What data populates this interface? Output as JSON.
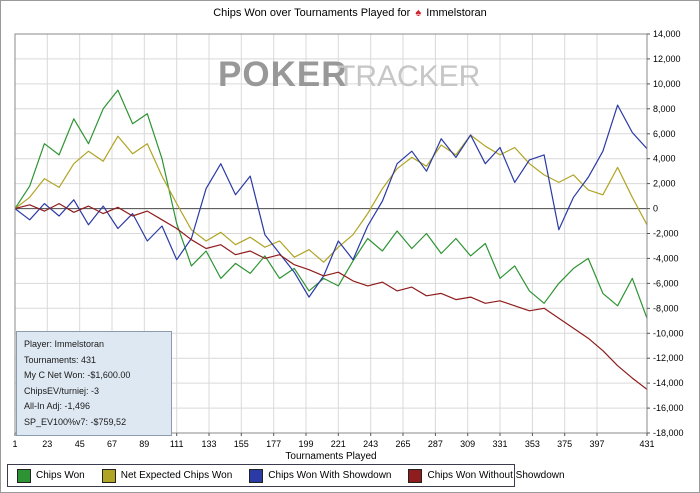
{
  "header": {
    "title_prefix": "Chips Won over Tournaments Played for",
    "player": "Immelstoran",
    "spade_icon": "♠"
  },
  "watermark": {
    "bold": "POKER",
    "light": "TRACKER"
  },
  "info_box": {
    "lines": [
      "Player: Immelstoran",
      "Tournaments: 431",
      "My C Net Won: -$1,600.00",
      "ChipsEV/turniej: -3",
      "All-In Adj: -1,496",
      "SP_EV100%v7: -$759,52"
    ]
  },
  "colors": {
    "grid": "#d9d9d9",
    "zero_line": "#4a4a4a",
    "plot_border": "#8a8a8a",
    "watermark_bold": "#989898",
    "watermark_light": "#c6c6c6",
    "info_box_bg": "#dee8f2",
    "spade": "#d41f2c"
  },
  "chart_data": {
    "type": "line",
    "title": "Chips Won over Tournaments Played for Immelstoran",
    "xlabel": "Tournaments Played",
    "ylabel": "",
    "grid": true,
    "legend_position": "bottom",
    "xlim": [
      1,
      431
    ],
    "ylim": [
      -18000,
      14000
    ],
    "x_ticks": [
      1,
      23,
      45,
      67,
      89,
      111,
      133,
      155,
      177,
      199,
      221,
      243,
      265,
      287,
      309,
      331,
      353,
      375,
      397,
      431
    ],
    "y_ticks": [
      14000,
      12000,
      10000,
      8000,
      6000,
      4000,
      2000,
      0,
      -2000,
      -4000,
      -6000,
      -8000,
      -10000,
      -12000,
      -14000,
      -16000,
      -18000
    ],
    "x": [
      1,
      11,
      21,
      31,
      41,
      51,
      61,
      71,
      81,
      91,
      101,
      111,
      121,
      131,
      141,
      151,
      161,
      171,
      181,
      191,
      201,
      211,
      221,
      231,
      241,
      251,
      261,
      271,
      281,
      291,
      301,
      311,
      321,
      331,
      341,
      351,
      361,
      371,
      381,
      391,
      401,
      411,
      421,
      431
    ],
    "series": [
      {
        "name": "Chips Won",
        "color": "#2e9433",
        "values": [
          0,
          1800,
          5200,
          4300,
          7200,
          5200,
          8000,
          9500,
          6800,
          7600,
          4000,
          -1200,
          -4600,
          -3400,
          -5600,
          -4400,
          -5200,
          -3800,
          -5600,
          -4800,
          -6600,
          -5600,
          -6200,
          -4200,
          -2400,
          -3400,
          -1800,
          -3200,
          -2000,
          -3600,
          -2400,
          -3800,
          -2800,
          -5600,
          -4600,
          -6600,
          -7600,
          -6000,
          -4800,
          -4000,
          -6800,
          -7800,
          -5600,
          -8800
        ]
      },
      {
        "name": "Net Expected Chips Won",
        "color": "#b0a424",
        "values": [
          0,
          900,
          2400,
          1700,
          3600,
          4600,
          3800,
          5800,
          4400,
          5200,
          2600,
          400,
          -1700,
          -2600,
          -1900,
          -2900,
          -2300,
          -3100,
          -2600,
          -3900,
          -3300,
          -4300,
          -3100,
          -2100,
          -400,
          1600,
          3200,
          4100,
          3400,
          5100,
          4300,
          5900,
          5000,
          4300,
          4900,
          3600,
          2700,
          2100,
          2700,
          1500,
          1100,
          3300,
          900,
          -1300
        ]
      },
      {
        "name": "Chips Won With Showdown",
        "color": "#2b3aa5",
        "values": [
          0,
          -900,
          400,
          -600,
          700,
          -1300,
          200,
          -1600,
          -400,
          -2600,
          -1400,
          -4100,
          -2400,
          1600,
          3600,
          1100,
          2600,
          -2100,
          -3600,
          -5100,
          -7100,
          -5400,
          -2600,
          -4100,
          -1400,
          600,
          3600,
          4600,
          3000,
          5600,
          4100,
          5900,
          3600,
          4900,
          2100,
          3900,
          4300,
          -1700,
          900,
          2500,
          4600,
          8300,
          6100,
          4800
        ]
      },
      {
        "name": "Chips Won Without Showdown",
        "color": "#8f1d1d",
        "values": [
          0,
          300,
          -200,
          400,
          -300,
          200,
          -400,
          100,
          -600,
          -200,
          -900,
          -1600,
          -2500,
          -3200,
          -2900,
          -3700,
          -3400,
          -4000,
          -3700,
          -4500,
          -4900,
          -5400,
          -5100,
          -5800,
          -6200,
          -5900,
          -6600,
          -6300,
          -7000,
          -6800,
          -7300,
          -7100,
          -7600,
          -7400,
          -7800,
          -8200,
          -8000,
          -8800,
          -9600,
          -10400,
          -11400,
          -12600,
          -13600,
          -14500
        ]
      }
    ]
  }
}
